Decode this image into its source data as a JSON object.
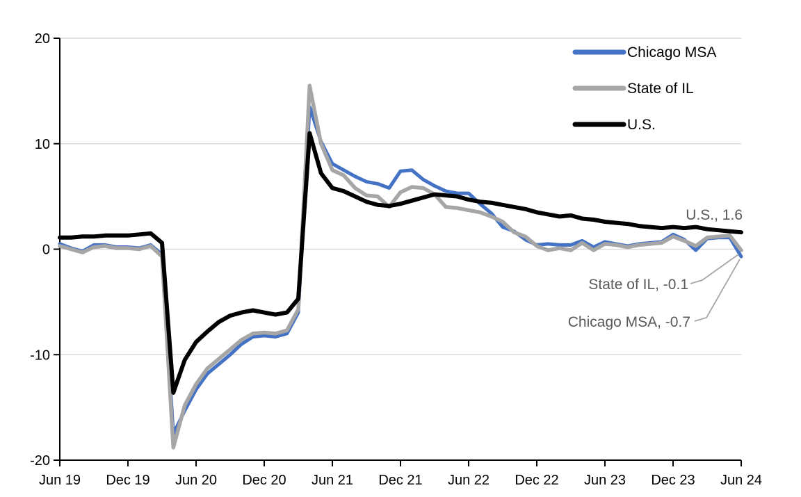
{
  "chart_data": {
    "type": "line",
    "title": "",
    "xlabel": "",
    "ylabel": "",
    "ylim": [
      -20,
      20
    ],
    "grid": true,
    "legend_position": "top-right",
    "y_ticks": [
      20,
      10,
      0,
      -10,
      -20
    ],
    "x_tick_labels": [
      "Jun 19",
      "Dec 19",
      "Jun 20",
      "Dec 20",
      "Jun 21",
      "Dec 21",
      "Jun 22",
      "Dec 22",
      "Jun 23",
      "Dec 23",
      "Jun 24"
    ],
    "x_tick_every_n_months": 6,
    "x": [
      "Jun 2019",
      "Jul 2019",
      "Aug 2019",
      "Sep 2019",
      "Oct 2019",
      "Nov 2019",
      "Dec 2019",
      "Jan 2020",
      "Feb 2020",
      "Mar 2020",
      "Apr 2020",
      "May 2020",
      "Jun 2020",
      "Jul 2020",
      "Aug 2020",
      "Sep 2020",
      "Oct 2020",
      "Nov 2020",
      "Dec 2020",
      "Jan 2021",
      "Feb 2021",
      "Mar 2021",
      "Apr 2021",
      "May 2021",
      "Jun 2021",
      "Jul 2021",
      "Aug 2021",
      "Sep 2021",
      "Oct 2021",
      "Nov 2021",
      "Dec 2021",
      "Jan 2022",
      "Feb 2022",
      "Mar 2022",
      "Apr 2022",
      "May 2022",
      "Jun 2022",
      "Jul 2022",
      "Aug 2022",
      "Sep 2022",
      "Oct 2022",
      "Nov 2022",
      "Dec 2022",
      "Jan 2023",
      "Feb 2023",
      "Mar 2023",
      "Apr 2023",
      "May 2023",
      "Jun 2023",
      "Jul 2023",
      "Aug 2023",
      "Sep 2023",
      "Oct 2023",
      "Nov 2023",
      "Dec 2023",
      "Jan 2024",
      "Feb 2024",
      "Mar 2024",
      "Apr 2024",
      "May 2024",
      "Jun 2024"
    ],
    "series": [
      {
        "name": "Chicago MSA",
        "color": "#4472C4",
        "stroke_width": 5,
        "end_value": -0.7,
        "values": [
          0.5,
          0.1,
          -0.2,
          0.4,
          0.4,
          0.2,
          0.2,
          0.1,
          0.4,
          -0.5,
          -17.5,
          -15.3,
          -13.3,
          -11.8,
          -10.9,
          -10.0,
          -9.0,
          -8.3,
          -8.2,
          -8.3,
          -8.0,
          -6.0,
          13.5,
          10.2,
          8.1,
          7.5,
          6.9,
          6.4,
          6.2,
          5.8,
          7.4,
          7.5,
          6.6,
          6.0,
          5.5,
          5.3,
          5.3,
          4.3,
          3.4,
          2.1,
          1.7,
          0.9,
          0.4,
          0.5,
          0.4,
          0.4,
          0.8,
          0.2,
          0.7,
          0.5,
          0.3,
          0.5,
          0.6,
          0.7,
          1.4,
          0.9,
          -0.1,
          1.0,
          1.1,
          1.1,
          -0.7
        ]
      },
      {
        "name": "State of IL",
        "color": "#A6A6A6",
        "stroke_width": 5.5,
        "end_value": -0.1,
        "values": [
          0.3,
          0.0,
          -0.3,
          0.2,
          0.3,
          0.1,
          0.1,
          0.0,
          0.3,
          -0.7,
          -18.8,
          -14.8,
          -12.8,
          -11.3,
          -10.4,
          -9.5,
          -8.6,
          -8.0,
          -7.9,
          -8.0,
          -7.7,
          -5.7,
          15.5,
          10.0,
          7.5,
          7.0,
          5.8,
          5.1,
          5.0,
          4.0,
          5.4,
          5.9,
          5.8,
          5.2,
          4.0,
          3.9,
          3.7,
          3.5,
          3.1,
          2.6,
          1.6,
          1.2,
          0.3,
          -0.1,
          0.1,
          -0.1,
          0.6,
          -0.1,
          0.5,
          0.4,
          0.2,
          0.4,
          0.5,
          0.6,
          1.2,
          0.8,
          0.3,
          1.1,
          1.2,
          1.3,
          -0.1
        ]
      },
      {
        "name": "U.S.",
        "color": "#000000",
        "stroke_width": 6,
        "end_value": 1.6,
        "values": [
          1.1,
          1.1,
          1.2,
          1.2,
          1.3,
          1.3,
          1.3,
          1.4,
          1.5,
          0.6,
          -13.6,
          -10.5,
          -8.8,
          -7.8,
          -6.9,
          -6.3,
          -6.0,
          -5.8,
          -6.0,
          -6.2,
          -6.0,
          -4.7,
          11.0,
          7.2,
          5.8,
          5.5,
          5.0,
          4.5,
          4.2,
          4.1,
          4.3,
          4.6,
          4.9,
          5.2,
          5.1,
          5.0,
          4.7,
          4.5,
          4.4,
          4.2,
          4.0,
          3.8,
          3.5,
          3.3,
          3.1,
          3.2,
          2.9,
          2.8,
          2.6,
          2.5,
          2.4,
          2.2,
          2.1,
          2.0,
          2.1,
          2.0,
          2.1,
          1.9,
          1.8,
          1.7,
          1.6
        ]
      }
    ]
  },
  "annotations": {
    "us": {
      "text": "U.S., 1.6",
      "color": "#595959"
    },
    "state_il": {
      "text": "State of IL, -0.1",
      "color": "#595959"
    },
    "chicago": {
      "text": "Chicago MSA, -0.7",
      "color": "#595959"
    }
  },
  "colors": {
    "gridline": "#D9D9D9",
    "axis": "#000000",
    "leader_line": "#A6A6A6",
    "background": "#FFFFFF"
  }
}
